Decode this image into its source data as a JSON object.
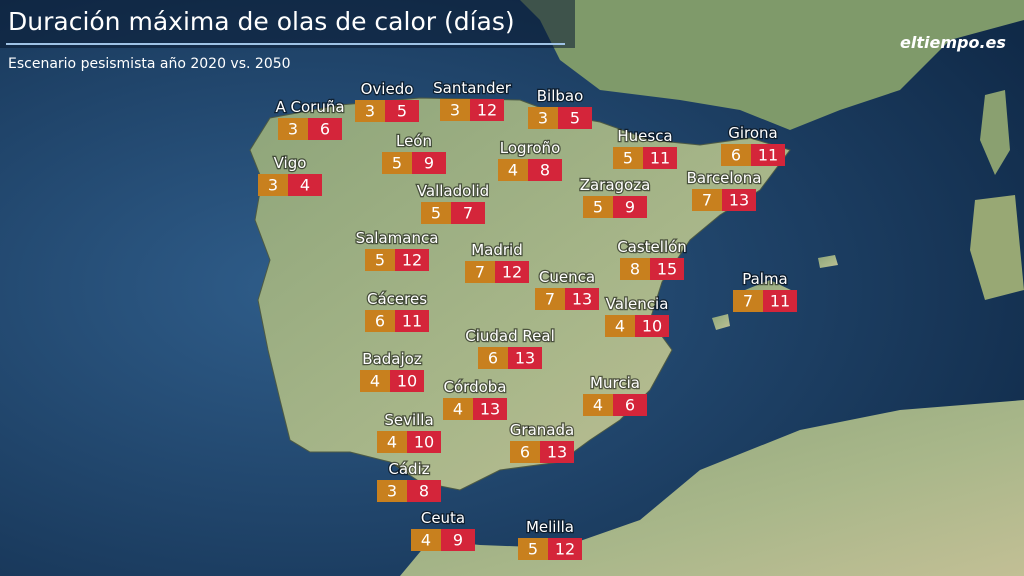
{
  "header": {
    "title": "Duración máxima de olas de calor (días)",
    "subtitle": "Escenario pesismista año 2020 vs. 2050",
    "logo": "eltiempo.es"
  },
  "cities": [
    {
      "name": "A Coruña",
      "v2020": "3",
      "v2050": "6"
    },
    {
      "name": "Oviedo",
      "v2020": "3",
      "v2050": "5"
    },
    {
      "name": "Santander",
      "v2020": "3",
      "v2050": "12"
    },
    {
      "name": "Bilbao",
      "v2020": "3",
      "v2050": "5"
    },
    {
      "name": "León",
      "v2020": "5",
      "v2050": "9"
    },
    {
      "name": "Logroño",
      "v2020": "4",
      "v2050": "8"
    },
    {
      "name": "Huesca",
      "v2020": "5",
      "v2050": "11"
    },
    {
      "name": "Girona",
      "v2020": "6",
      "v2050": "11"
    },
    {
      "name": "Vigo",
      "v2020": "3",
      "v2050": "4"
    },
    {
      "name": "Valladolid",
      "v2020": "5",
      "v2050": "7"
    },
    {
      "name": "Zaragoza",
      "v2020": "5",
      "v2050": "9"
    },
    {
      "name": "Barcelona",
      "v2020": "7",
      "v2050": "13"
    },
    {
      "name": "Salamanca",
      "v2020": "5",
      "v2050": "12"
    },
    {
      "name": "Madrid",
      "v2020": "7",
      "v2050": "12"
    },
    {
      "name": "Castellón",
      "v2020": "8",
      "v2050": "15"
    },
    {
      "name": "Palma",
      "v2020": "7",
      "v2050": "11"
    },
    {
      "name": "Cuenca",
      "v2020": "7",
      "v2050": "13"
    },
    {
      "name": "Cáceres",
      "v2020": "6",
      "v2050": "11"
    },
    {
      "name": "Valencia",
      "v2020": "4",
      "v2050": "10"
    },
    {
      "name": "Ciudad Real",
      "v2020": "6",
      "v2050": "13"
    },
    {
      "name": "Badajoz",
      "v2020": "4",
      "v2050": "10"
    },
    {
      "name": "Córdoba",
      "v2020": "4",
      "v2050": "13"
    },
    {
      "name": "Murcia",
      "v2020": "4",
      "v2050": "6"
    },
    {
      "name": "Sevilla",
      "v2020": "4",
      "v2050": "10"
    },
    {
      "name": "Granada",
      "v2020": "6",
      "v2050": "13"
    },
    {
      "name": "Cádiz",
      "v2020": "3",
      "v2050": "8"
    },
    {
      "name": "Ceuta",
      "v2020": "4",
      "v2050": "9"
    },
    {
      "name": "Melilla",
      "v2020": "5",
      "v2050": "12"
    }
  ]
}
